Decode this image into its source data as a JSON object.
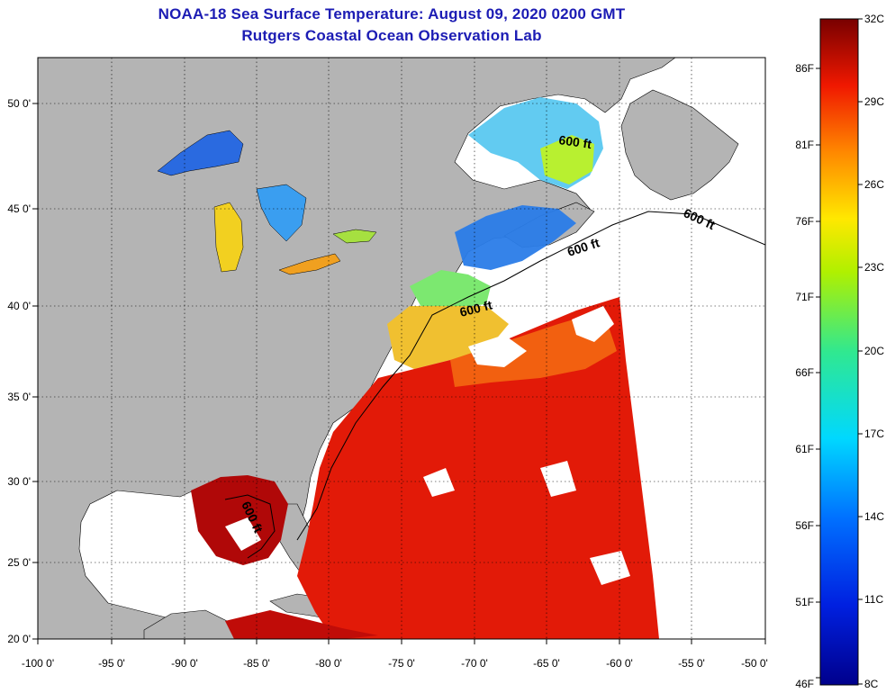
{
  "header": {
    "title": "NOAA-18 Sea Surface Temperature:  August 09, 2020 0200 GMT",
    "subtitle": "Rutgers Coastal Ocean Observation Lab"
  },
  "map": {
    "lon_range": [
      -100,
      -50
    ],
    "lat_range": [
      20,
      52
    ],
    "lon_ticks": [
      "-100 0'",
      "-95 0'",
      "-90 0'",
      "-85 0'",
      "-80 0'",
      "-75 0'",
      "-70 0'",
      "-65 0'",
      "-60 0'",
      "-55 0'",
      "-50 0'"
    ],
    "lat_ticks": [
      "20 0'",
      "25 0'",
      "30 0'",
      "35 0'",
      "40 0'",
      "45 0'",
      "50 0'"
    ],
    "contour_label": "600 ft",
    "colors": {
      "land": "#b4b4b4",
      "nodata": "#ffffff",
      "warm": "#e01008",
      "hot": "#a80000"
    }
  },
  "colorbar": {
    "celsius": [
      "32C",
      "29C",
      "26C",
      "23C",
      "20C",
      "17C",
      "14C",
      "11C",
      "8C"
    ],
    "fahrenheit": [
      "86F",
      "81F",
      "76F",
      "71F",
      "66F",
      "61F",
      "56F",
      "51F",
      "46F"
    ]
  }
}
